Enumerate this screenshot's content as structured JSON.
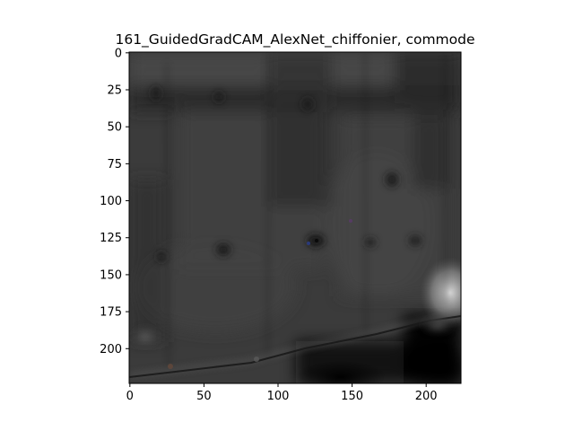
{
  "figure": {
    "title": "161_GuidedGradCAM_AlexNet_chiffonier, commode"
  },
  "chart_data": {
    "type": "heatmap",
    "title": "161_GuidedGradCAM_AlexNet_chiffonier, commode",
    "xlabel": "",
    "ylabel": "",
    "xlim": [
      0,
      224
    ],
    "ylim": [
      224,
      0
    ],
    "x_ticks": [
      "0",
      "50",
      "100",
      "150",
      "200"
    ],
    "y_ticks": [
      "0",
      "25",
      "50",
      "75",
      "100",
      "125",
      "150",
      "175",
      "200"
    ],
    "x_tick_values": [
      0,
      50,
      100,
      150,
      200
    ],
    "y_tick_values": [
      0,
      25,
      50,
      75,
      100,
      125,
      150,
      175,
      200
    ],
    "image_size": [
      224,
      224
    ],
    "colormap": "grayscale guided grad-cam image"
  }
}
